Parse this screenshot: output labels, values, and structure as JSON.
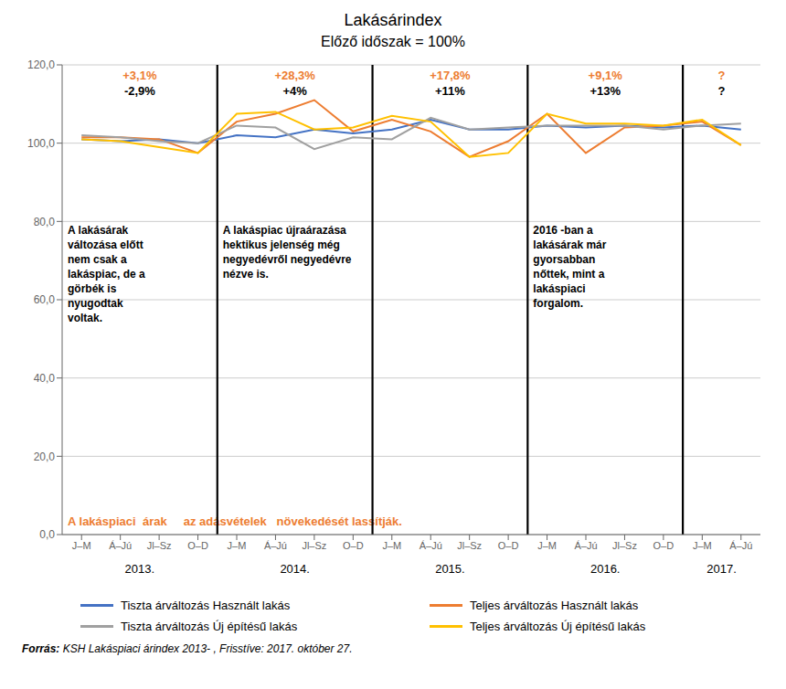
{
  "chart_data": {
    "type": "line",
    "title": "Lakásárindex",
    "subtitle": "Előző időszak = 100%",
    "categories": [
      "J–M",
      "Á–Jú",
      "Jl–Sz",
      "O–D",
      "J–M",
      "Á–Jú",
      "Jl–Sz",
      "O–D",
      "J–M",
      "Á–Jú",
      "Jl–Sz",
      "O–D",
      "J–M",
      "Á–Jú",
      "Jl–Sz",
      "O–D",
      "J–M",
      "Á–Jú"
    ],
    "years": [
      "2013.",
      "2013.",
      "2013.",
      "2013.",
      "2014.",
      "2014.",
      "2014.",
      "2014.",
      "2015.",
      "2015.",
      "2015.",
      "2015.",
      "2016.",
      "2016.",
      "2016.",
      "2016.",
      "2017.",
      "2017."
    ],
    "series": [
      {
        "name": "Tiszta árváltozás Használt lakás",
        "color": "#4472C4",
        "values": [
          101.0,
          100.5,
          101.0,
          100.0,
          102.0,
          101.5,
          103.5,
          102.5,
          103.5,
          106.0,
          103.5,
          103.5,
          104.5,
          104.0,
          104.5,
          104.0,
          104.5,
          103.5
        ]
      },
      {
        "name": "Teljes árváltozás Használt lakás",
        "color": "#ED7D31",
        "values": [
          101.5,
          101.5,
          101.0,
          97.5,
          105.5,
          107.5,
          111.0,
          103.0,
          106.0,
          103.0,
          96.5,
          100.5,
          107.5,
          97.5,
          104.0,
          104.5,
          105.5,
          99.5
        ]
      },
      {
        "name": "Tiszta árváltozás Új építésű lakás",
        "color": "#A0A0A0",
        "values": [
          102.0,
          101.5,
          100.5,
          100.0,
          104.5,
          104.0,
          98.5,
          101.5,
          101.0,
          106.5,
          103.5,
          104.0,
          104.5,
          104.5,
          104.5,
          103.5,
          104.5,
          105.0
        ]
      },
      {
        "name": "Teljes árváltozás Új építésű lakás",
        "color": "#FFC000",
        "values": [
          101.0,
          100.5,
          99.0,
          97.5,
          107.5,
          108.0,
          103.5,
          104.0,
          107.0,
          105.5,
          96.5,
          97.5,
          107.5,
          105.0,
          105.0,
          104.5,
          106.0,
          99.5
        ]
      }
    ],
    "ylim": [
      0,
      120
    ],
    "yticks": [
      {
        "value": 0,
        "label": "0,0"
      },
      {
        "value": 20,
        "label": "20,0"
      },
      {
        "value": 40,
        "label": "40,0"
      },
      {
        "value": 60,
        "label": "60,0"
      },
      {
        "value": 80,
        "label": "80,0"
      },
      {
        "value": 100,
        "label": "100,0"
      },
      {
        "value": 120,
        "label": "120,0"
      }
    ],
    "grid": true,
    "annotations": [
      {
        "year": "2013.",
        "text": "+3,1%",
        "color": "#ED7D31"
      },
      {
        "year": "2013.",
        "text": "-2,9%",
        "color": "#000000"
      },
      {
        "year": "2014.",
        "text": "+28,3%",
        "color": "#ED7D31"
      },
      {
        "year": "2014.",
        "text": "+4%",
        "color": "#000000"
      },
      {
        "year": "2015.",
        "text": "+17,8%",
        "color": "#ED7D31"
      },
      {
        "year": "2015.",
        "text": "+11%",
        "color": "#000000"
      },
      {
        "year": "2016.",
        "text": "+9,1%",
        "color": "#ED7D31"
      },
      {
        "year": "2016.",
        "text": "+13%",
        "color": "#000000"
      },
      {
        "year": "2017.",
        "text": "?",
        "color": "#ED7D31"
      },
      {
        "year": "2017.",
        "text": "?",
        "color": "#000000"
      }
    ],
    "notes": [
      {
        "year": "2013.",
        "text": "A lakásárak\nváltozása előtt\nnem csak a\nlakáspiac, de a\ngörbék is\nnyugodtak\nvoltak."
      },
      {
        "year": "2014.",
        "text": "A lakáspiac újraárazása\nhektikus jelenség még\nnegyedévről negyedévre\nnézve is."
      },
      {
        "year": "2016.",
        "text": "2016 -ban a\nlakásárak már\ngyorsabban\nnőttek, mint a\nlakáspiaci\nforgalom."
      }
    ],
    "footnote": {
      "text": "A lakáspiaci  árak     az adásvételek   növekedését lassítják.",
      "color": "#ED7D31"
    },
    "source_label": "Forrás:",
    "source": "KSH Lakáspiaci árindex 2013- , Frisstíve: 2017. október 27."
  }
}
